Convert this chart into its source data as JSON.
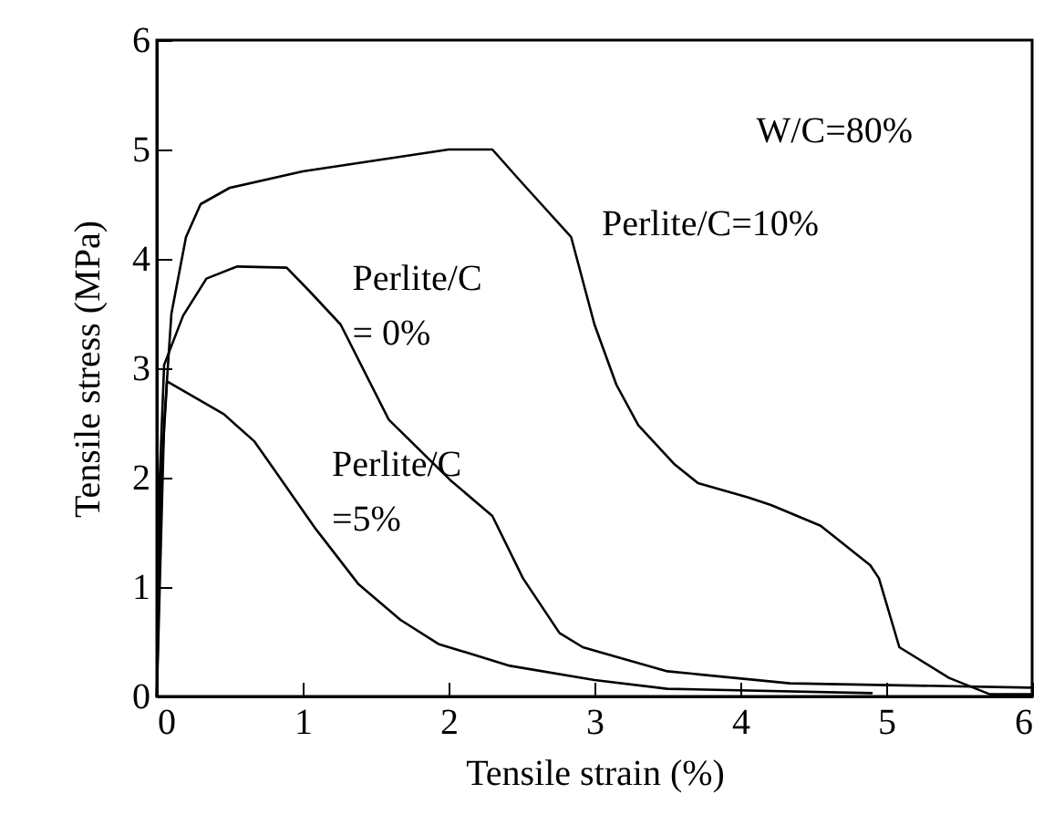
{
  "chart_data": {
    "type": "line",
    "xlabel": "Tensile strain (%)",
    "ylabel": "Tensile stress (MPa)",
    "xlim": [
      0,
      6
    ],
    "ylim": [
      0,
      6
    ],
    "xticks": [
      0,
      1,
      2,
      3,
      4,
      5,
      6
    ],
    "yticks": [
      0,
      1,
      2,
      3,
      4,
      5,
      6
    ],
    "grid": false,
    "legend": false,
    "marker": "none",
    "line_style": "solid",
    "series": [
      {
        "name": "Perlite/C=10%",
        "color": "#000000",
        "x": [
          0,
          0.05,
          0.1,
          0.2,
          0.3,
          0.5,
          1,
          1.5,
          2,
          2.3,
          2.5,
          2.67,
          2.84,
          3.0,
          3.15,
          3.3,
          3.55,
          3.71,
          4.05,
          4.21,
          4.55,
          4.89,
          4.95,
          5.09,
          5.43,
          5.71,
          6
        ],
        "values": [
          0,
          2.5,
          3.5,
          4.2,
          4.5,
          4.65,
          4.8,
          4.9,
          5.0,
          5.0,
          4.7,
          4.45,
          4.2,
          3.4,
          2.85,
          2.48,
          2.12,
          1.95,
          1.82,
          1.75,
          1.56,
          1.2,
          1.08,
          0.45,
          0.17,
          0.02,
          0.02
        ]
      },
      {
        "name": "Perlite/C\n= 0%",
        "color": "#000000",
        "x": [
          0,
          0.02,
          0.05,
          0.18,
          0.34,
          0.55,
          0.89,
          1.05,
          1.26,
          1.59,
          2.01,
          2.3,
          2.51,
          2.76,
          2.92,
          3.05,
          3.5,
          4.34,
          6
        ],
        "values": [
          0,
          2.0,
          3.03,
          3.48,
          3.82,
          3.93,
          3.92,
          3.7,
          3.4,
          2.53,
          1.98,
          1.65,
          1.08,
          0.58,
          0.45,
          0.4,
          0.23,
          0.12,
          0.08
        ]
      },
      {
        "name": "Perlite/C\n=5%",
        "color": "#000000",
        "x": [
          0,
          0.03,
          0.07,
          0.46,
          0.67,
          1.09,
          1.38,
          1.67,
          1.93,
          2.42,
          3.0,
          3.5,
          4.9
        ],
        "values": [
          0,
          2.0,
          2.88,
          2.58,
          2.33,
          1.53,
          1.03,
          0.7,
          0.48,
          0.28,
          0.15,
          0.07,
          0.03
        ]
      }
    ],
    "annotations": [
      "W/C=80%"
    ]
  }
}
